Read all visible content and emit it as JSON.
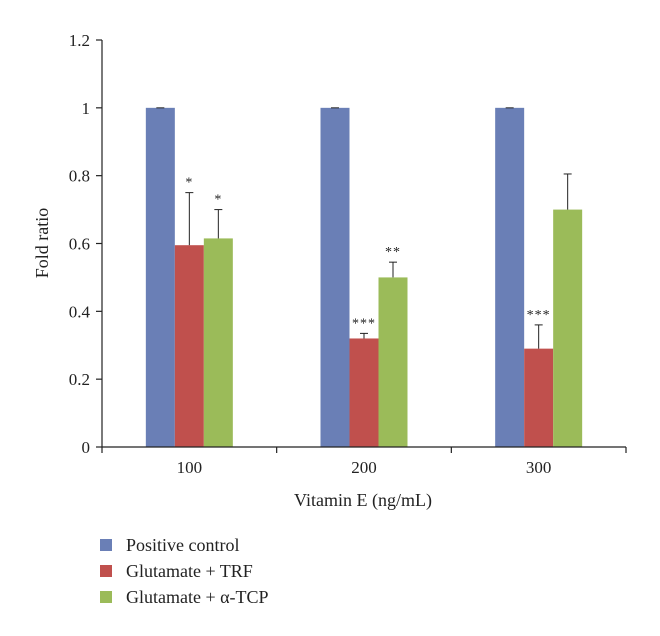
{
  "chart_data": {
    "type": "bar",
    "xlabel": "Vitamin E (ng/mL)",
    "ylabel": "Fold ratio",
    "ylim": [
      0,
      1.2
    ],
    "yticks": [
      "0",
      "0.2",
      "0.4",
      "0.6",
      "0.8",
      "1",
      "1.2"
    ],
    "categories": [
      "100",
      "200",
      "300"
    ],
    "grid": false,
    "legend_position": "bottom-left",
    "series": [
      {
        "name": "Positive control",
        "color": "#6a7fb6",
        "values": [
          1.0,
          1.0,
          1.0
        ],
        "errors": [
          0.0,
          0.0,
          0.0
        ],
        "significance": [
          "",
          "",
          ""
        ]
      },
      {
        "name": "Glutamate + TRF",
        "color": "#c0504d",
        "values": [
          0.595,
          0.32,
          0.29
        ],
        "errors": [
          0.155,
          0.015,
          0.07
        ],
        "significance": [
          "*",
          "***",
          "***"
        ]
      },
      {
        "name": "Glutamate + α-TCP",
        "color": "#9bbb59",
        "values": [
          0.615,
          0.5,
          0.7
        ],
        "errors": [
          0.085,
          0.045,
          0.105
        ],
        "significance": [
          "*",
          "**",
          ""
        ]
      }
    ]
  }
}
